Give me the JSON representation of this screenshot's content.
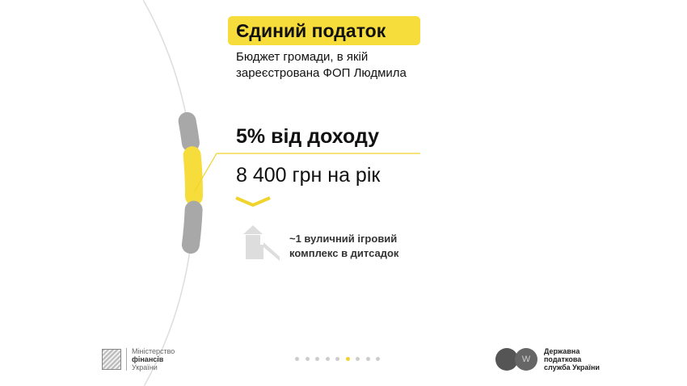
{
  "header": {
    "title": "Єдиний податок",
    "subtitle_line1": "Бюджет громади, в якій",
    "subtitle_line2": "зареєстрована ФОП Людмила"
  },
  "main": {
    "rate": "5% від доходу",
    "amount": "8 400 грн на рік",
    "example_line1": "~1 вуличний ігровий",
    "example_line2": "комплекс в дитсадок",
    "example_icon": "playground-icon"
  },
  "footer": {
    "ministry": [
      "Міністерство",
      "фінансів",
      "України"
    ],
    "tax_service": [
      "Державна",
      "податкова",
      "служба України"
    ],
    "pagination": {
      "total": 9,
      "active": 6
    }
  },
  "colors": {
    "accent": "#f7dd3c",
    "gray": "#a8a8a8"
  }
}
